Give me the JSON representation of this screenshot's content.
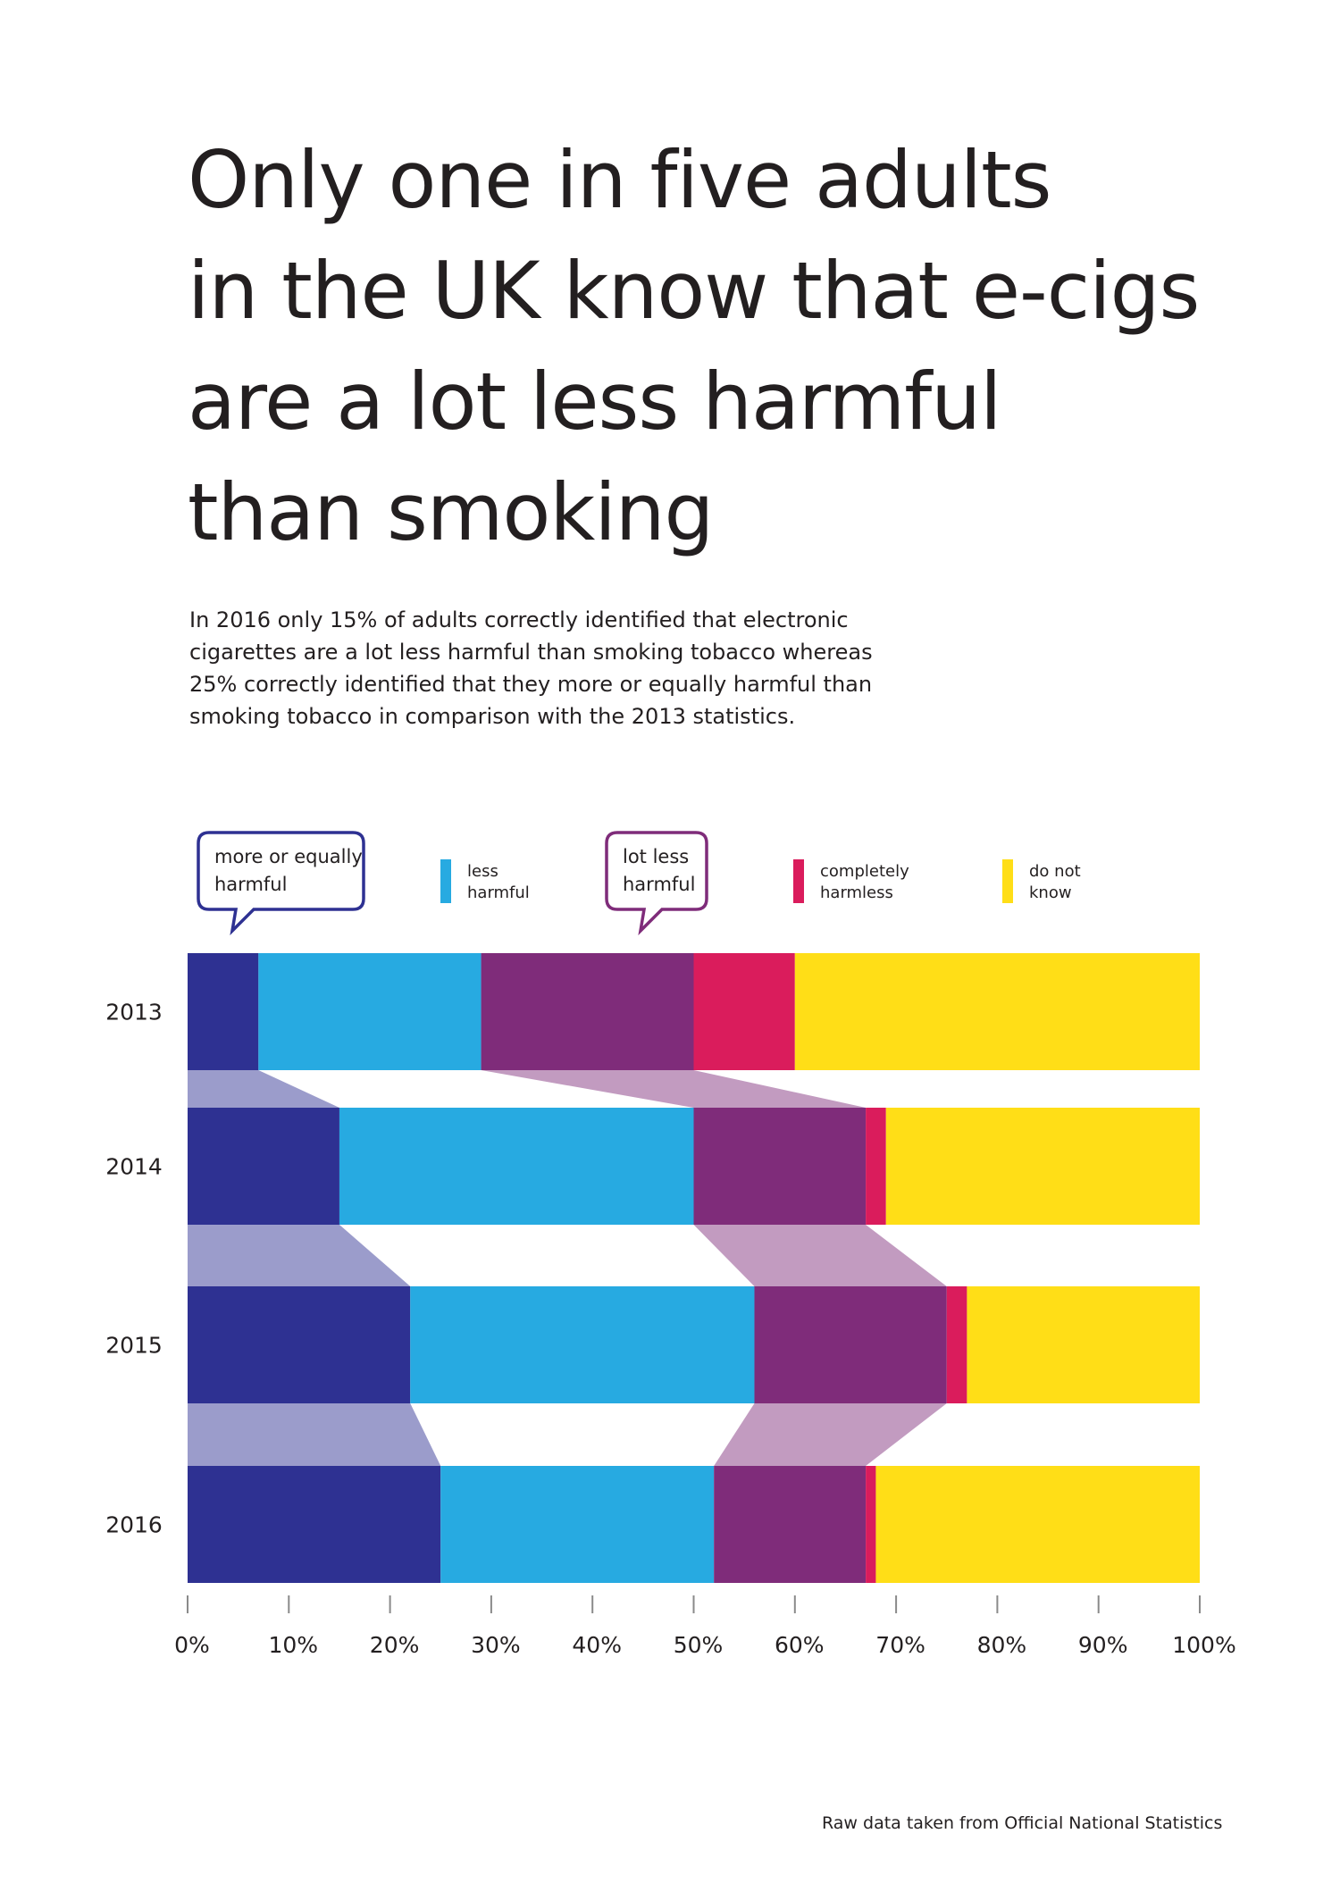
{
  "title_lines": [
    "Only one in five adults",
    "in the UK know that e-cigs",
    "are a lot less harmful",
    "than smoking"
  ],
  "subtitle_lines": [
    "In 2016 only 15% of adults correctly identified that electronic",
    "cigarettes are a lot less harmful than smoking tobacco whereas",
    "25% correctly identified that they more or equally harmful than",
    "smoking tobacco in comparison with the 2013 statistics."
  ],
  "source": "Raw data taken from Official National Statistics",
  "chart_data": {
    "type": "bar",
    "orientation": "horizontal",
    "stacked": true,
    "categories": [
      "2013",
      "2014",
      "2015",
      "2016"
    ],
    "series": [
      {
        "name": "more or equally harmful",
        "lines": [
          "more or equally",
          "harmful"
        ],
        "color": "#2e3192",
        "legend_style": "bubble",
        "values": [
          7,
          15,
          22,
          25
        ]
      },
      {
        "name": "less harmful",
        "lines": [
          "less",
          "harmful"
        ],
        "color": "#27aae1",
        "legend_style": "swatch",
        "values": [
          22,
          35,
          34,
          27
        ]
      },
      {
        "name": "lot less harmful",
        "lines": [
          "lot less",
          "harmful"
        ],
        "color": "#7f2c7a",
        "legend_style": "bubble",
        "values": [
          21,
          17,
          19,
          15
        ]
      },
      {
        "name": "completely harmless",
        "lines": [
          "completely",
          "harmless"
        ],
        "color": "#da1c5c",
        "legend_style": "swatch",
        "values": [
          10,
          2,
          2,
          1
        ]
      },
      {
        "name": "do not know",
        "lines": [
          "do not",
          "know"
        ],
        "color": "#ffde17",
        "legend_style": "swatch",
        "values": [
          40,
          31,
          23,
          32
        ]
      }
    ],
    "connector_colors": {
      "more or equally harmful": "#9b9ccb",
      "lot less harmful": "#c29bc0"
    },
    "xlim": [
      0,
      100
    ],
    "xticks": [
      "0%",
      "10%",
      "20%",
      "30%",
      "40%",
      "50%",
      "60%",
      "70%",
      "80%",
      "90%",
      "100%"
    ],
    "legend_position": "top",
    "grid": false
  }
}
